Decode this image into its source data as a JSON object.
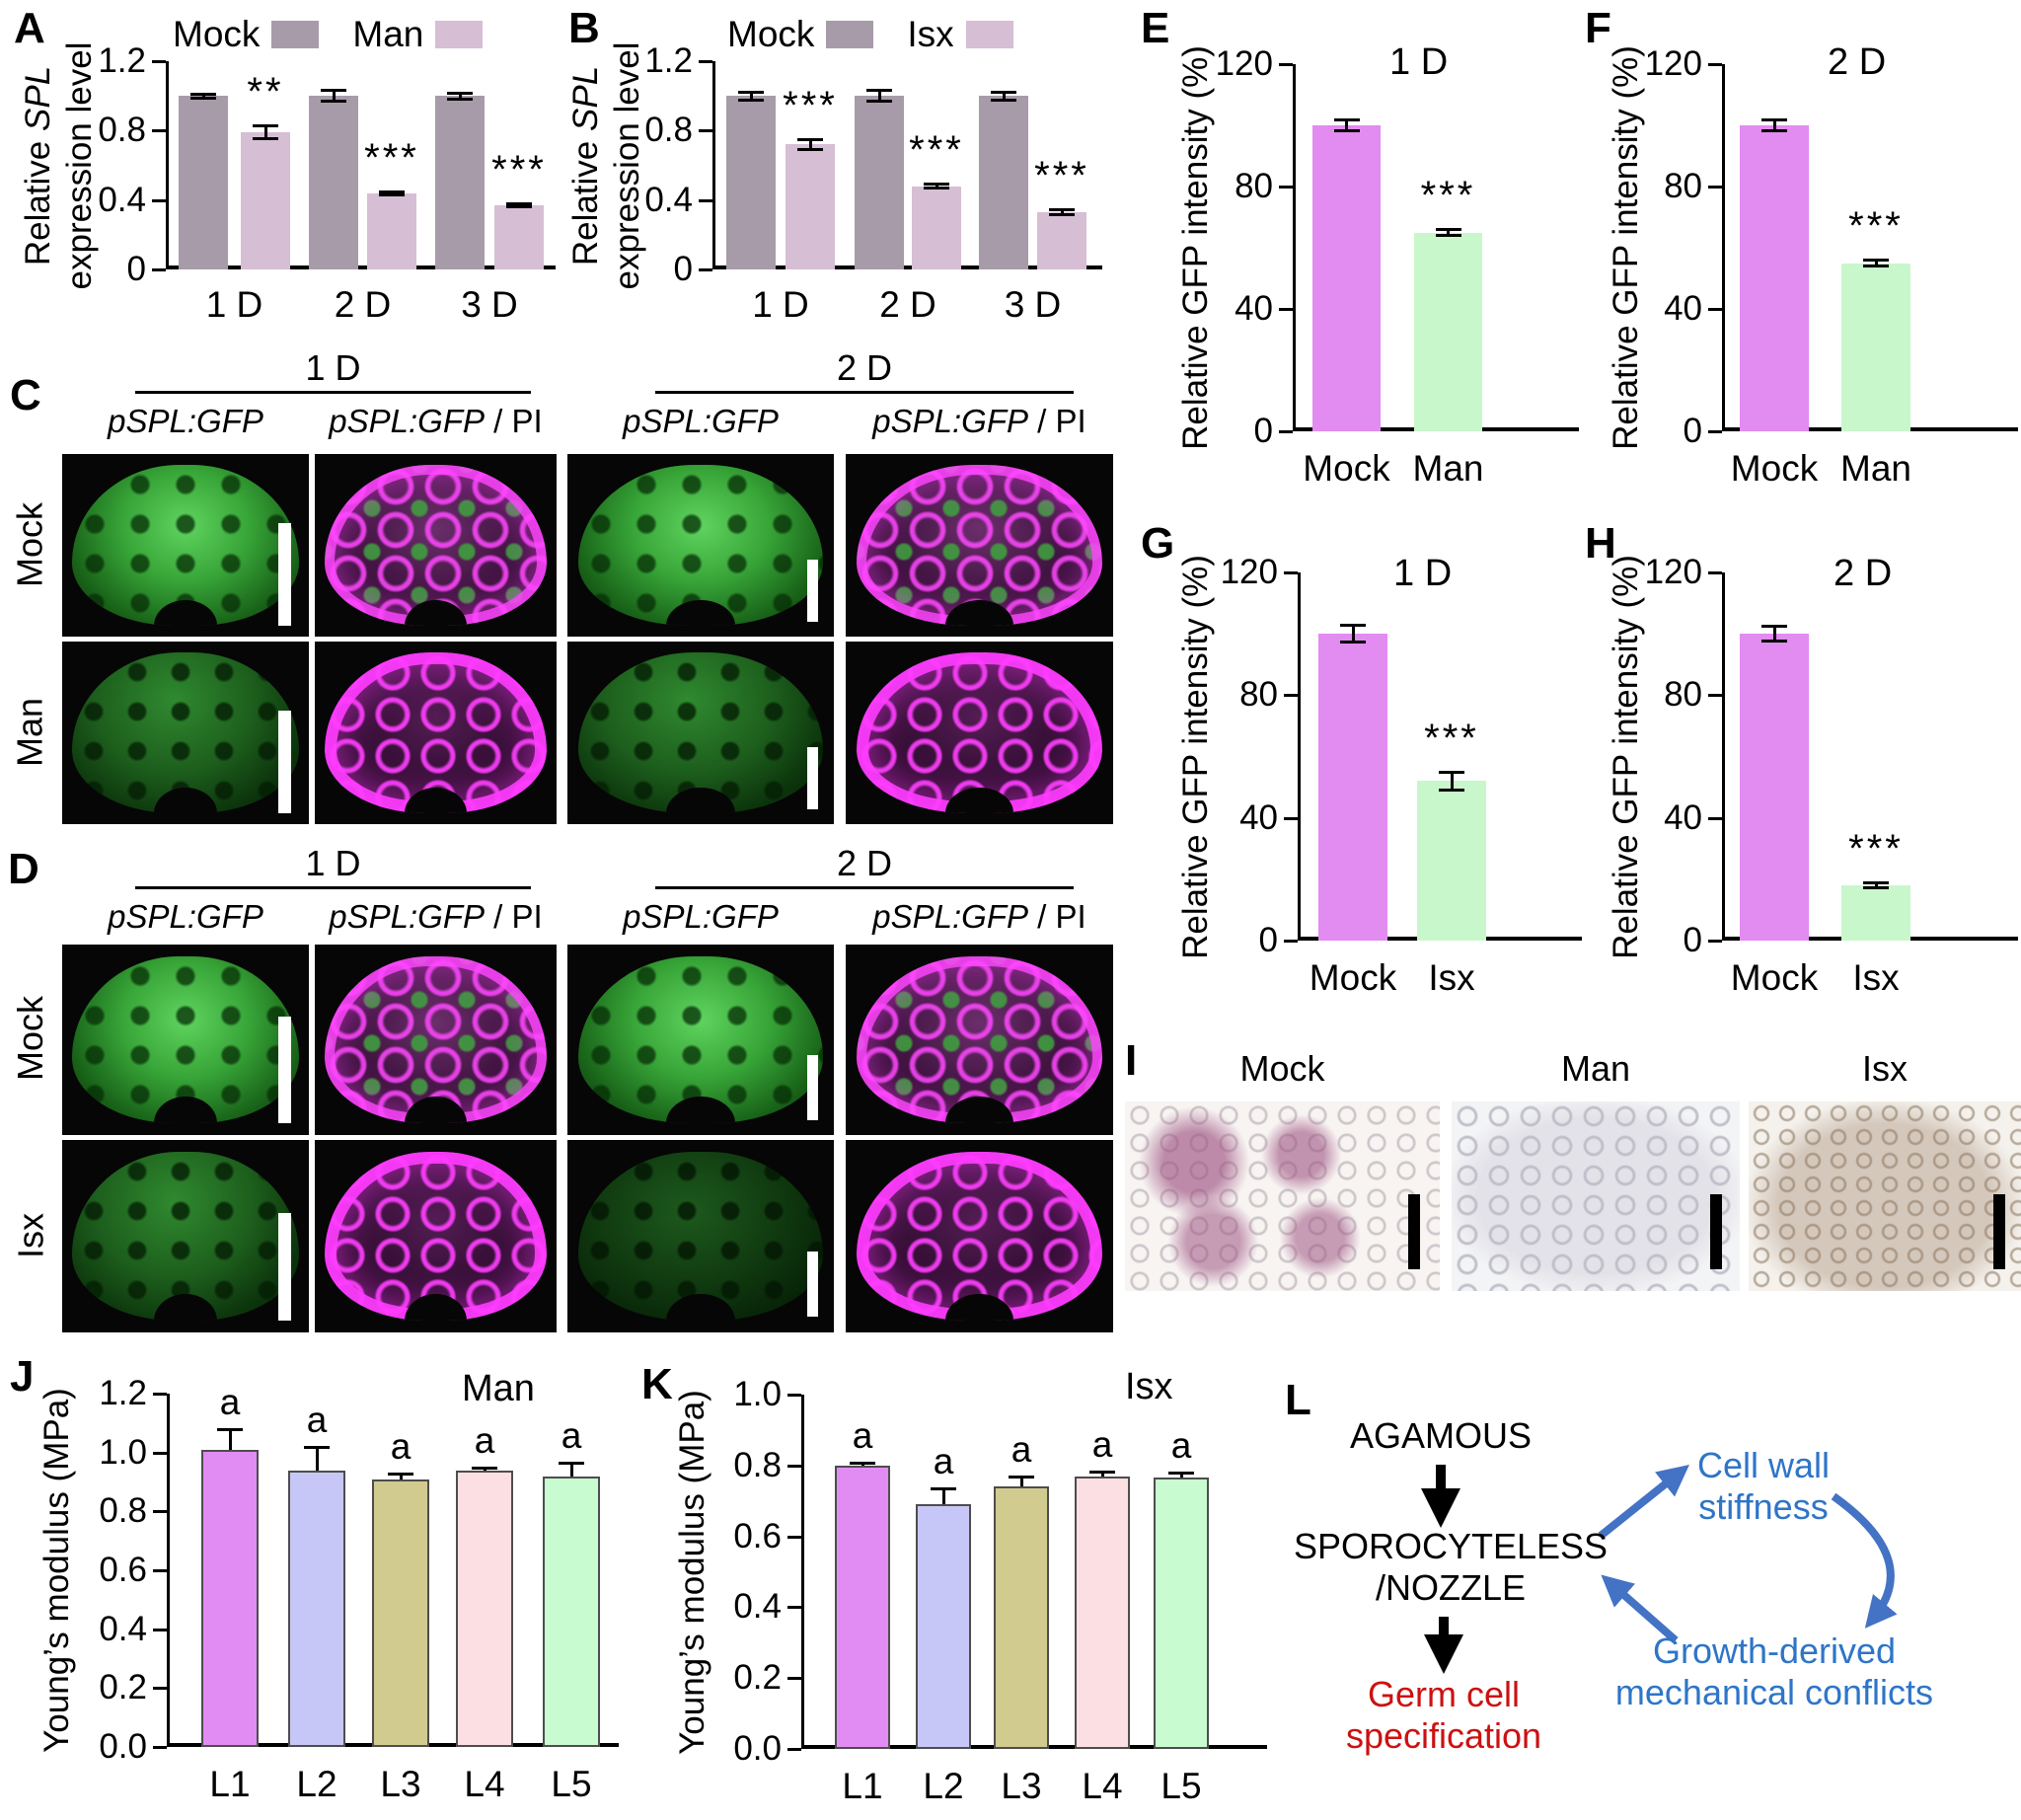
{
  "panels": {
    "A": {
      "label": "A"
    },
    "B": {
      "label": "B"
    },
    "C": {
      "label": "C"
    },
    "D": {
      "label": "D"
    },
    "E": {
      "label": "E"
    },
    "F": {
      "label": "F"
    },
    "G": {
      "label": "G"
    },
    "H": {
      "label": "H"
    },
    "I": {
      "label": "I"
    },
    "J": {
      "label": "J"
    },
    "K": {
      "label": "K"
    },
    "L": {
      "label": "L"
    }
  },
  "chart_data": [
    {
      "id": "A",
      "type": "bar",
      "grouped": true,
      "ylabel": "Relative SPL expression level",
      "ylabel_lines": [
        "Relative SPL",
        "expression level"
      ],
      "italic_words": [
        "SPL"
      ],
      "categories": [
        "1 D",
        "2 D",
        "3 D"
      ],
      "ylim": [
        0,
        1.2
      ],
      "yticks": [
        {
          "v": 0,
          "t": "0"
        },
        {
          "v": 0.4,
          "t": "0.4"
        },
        {
          "v": 0.8,
          "t": "0.8"
        },
        {
          "v": 1.2,
          "t": "1.2"
        }
      ],
      "error_style": "full",
      "legend": true,
      "legend_position": "top",
      "series": [
        {
          "name": "Mock",
          "color": "#a79ba9",
          "values": [
            1.0,
            1.0,
            1.0
          ],
          "errors": [
            0.015,
            0.035,
            0.02
          ],
          "sig": [
            null,
            null,
            null
          ]
        },
        {
          "name": "Man",
          "color": "#d6bed4",
          "values": [
            0.79,
            0.44,
            0.37
          ],
          "errors": [
            0.04,
            0.012,
            0.01
          ],
          "sig": [
            "**",
            "***",
            "***"
          ]
        }
      ]
    },
    {
      "id": "B",
      "type": "bar",
      "grouped": true,
      "ylabel": "Relative SPL expression level",
      "ylabel_lines": [
        "Relative SPL",
        "expression level"
      ],
      "italic_words": [
        "SPL"
      ],
      "categories": [
        "1 D",
        "2 D",
        "3 D"
      ],
      "ylim": [
        0,
        1.2
      ],
      "yticks": [
        {
          "v": 0,
          "t": "0"
        },
        {
          "v": 0.4,
          "t": "0.4"
        },
        {
          "v": 0.8,
          "t": "0.8"
        },
        {
          "v": 1.2,
          "t": "1.2"
        }
      ],
      "error_style": "full",
      "legend": true,
      "legend_position": "top",
      "series": [
        {
          "name": "Mock",
          "color": "#a79ba9",
          "values": [
            1.0,
            1.0,
            1.0
          ],
          "errors": [
            0.025,
            0.035,
            0.025
          ],
          "sig": [
            null,
            null,
            null
          ]
        },
        {
          "name": "Isx",
          "color": "#d6bed4",
          "values": [
            0.72,
            0.48,
            0.33
          ],
          "errors": [
            0.03,
            0.012,
            0.015
          ],
          "sig": [
            "***",
            "***",
            "***"
          ]
        }
      ]
    },
    {
      "id": "E",
      "type": "bar",
      "title": "1 D",
      "ylabel": "Relative GFP intensity (%)",
      "ylabel_lines": [
        "Relative GFP intensity (%)"
      ],
      "categories": [
        "Mock",
        "Man"
      ],
      "values": [
        100,
        65
      ],
      "errors": [
        2,
        1
      ],
      "sig": [
        null,
        "***"
      ],
      "colors": [
        "#e28bf0",
        "#c9f7cc"
      ],
      "ylim": [
        0,
        120
      ],
      "yticks": [
        {
          "v": 0,
          "t": "0"
        },
        {
          "v": 40,
          "t": "40"
        },
        {
          "v": 80,
          "t": "80"
        },
        {
          "v": 120,
          "t": "120"
        }
      ],
      "error_style": "full"
    },
    {
      "id": "F",
      "type": "bar",
      "title": "2 D",
      "ylabel": "Relative GFP intensity (%)",
      "ylabel_lines": [
        "Relative GFP intensity (%)"
      ],
      "categories": [
        "Mock",
        "Man"
      ],
      "values": [
        100,
        55
      ],
      "errors": [
        2,
        1
      ],
      "sig": [
        null,
        "***"
      ],
      "colors": [
        "#e28bf0",
        "#c9f7cc"
      ],
      "ylim": [
        0,
        120
      ],
      "yticks": [
        {
          "v": 0,
          "t": "0"
        },
        {
          "v": 40,
          "t": "40"
        },
        {
          "v": 80,
          "t": "80"
        },
        {
          "v": 120,
          "t": "120"
        }
      ],
      "error_style": "full"
    },
    {
      "id": "G",
      "type": "bar",
      "title": "1 D",
      "ylabel": "Relative GFP intensity (%)",
      "ylabel_lines": [
        "Relative GFP intensity (%)"
      ],
      "categories": [
        "Mock",
        "Isx"
      ],
      "values": [
        100,
        52
      ],
      "errors": [
        3,
        3
      ],
      "sig": [
        null,
        "***"
      ],
      "colors": [
        "#e28bf0",
        "#c9f7cc"
      ],
      "ylim": [
        0,
        120
      ],
      "yticks": [
        {
          "v": 0,
          "t": "0"
        },
        {
          "v": 40,
          "t": "40"
        },
        {
          "v": 80,
          "t": "80"
        },
        {
          "v": 120,
          "t": "120"
        }
      ],
      "error_style": "full"
    },
    {
      "id": "H",
      "type": "bar",
      "title": "2 D",
      "ylabel": "Relative GFP intensity (%)",
      "ylabel_lines": [
        "Relative GFP intensity (%)"
      ],
      "categories": [
        "Mock",
        "Isx"
      ],
      "values": [
        100,
        18
      ],
      "errors": [
        2.5,
        1
      ],
      "sig": [
        null,
        "***"
      ],
      "colors": [
        "#e28bf0",
        "#c9f7cc"
      ],
      "ylim": [
        0,
        120
      ],
      "yticks": [
        {
          "v": 0,
          "t": "0"
        },
        {
          "v": 40,
          "t": "40"
        },
        {
          "v": 80,
          "t": "80"
        },
        {
          "v": 120,
          "t": "120"
        }
      ],
      "error_style": "full"
    },
    {
      "id": "J",
      "type": "bar",
      "title": "Man",
      "ylabel": "Young’s modulus (MPa)",
      "ylabel_lines": [
        "Young’s modulus (MPa)"
      ],
      "categories": [
        "L1",
        "L2",
        "L3",
        "L4",
        "L5"
      ],
      "values": [
        1.01,
        0.94,
        0.91,
        0.94,
        0.92
      ],
      "errors": [
        0.07,
        0.08,
        0.02,
        0.008,
        0.045
      ],
      "letters": [
        "a",
        "a",
        "a",
        "a",
        "a"
      ],
      "colors": [
        "#e18cf2",
        "#c7c7f7",
        "#d2cb8f",
        "#fcdfe2",
        "#c8fbd0"
      ],
      "bar_border": "#4d4d4d",
      "ylim": [
        0,
        1.2
      ],
      "yticks": [
        {
          "v": 0,
          "t": "0.0"
        },
        {
          "v": 0.2,
          "t": "0.2"
        },
        {
          "v": 0.4,
          "t": "0.4"
        },
        {
          "v": 0.6,
          "t": "0.6"
        },
        {
          "v": 0.8,
          "t": "0.8"
        },
        {
          "v": 1.0,
          "t": "1.0"
        },
        {
          "v": 1.2,
          "t": "1.2"
        }
      ],
      "error_style": "upper"
    },
    {
      "id": "K",
      "type": "bar",
      "title": "Isx",
      "ylabel": "Young’s modulus (MPa)",
      "ylabel_lines": [
        "Young’s modulus (MPa)"
      ],
      "categories": [
        "L1",
        "L2",
        "L3",
        "L4",
        "L5"
      ],
      "values": [
        0.8,
        0.69,
        0.74,
        0.77,
        0.765
      ],
      "errors": [
        0.008,
        0.045,
        0.03,
        0.014,
        0.014
      ],
      "letters": [
        "a",
        "a",
        "a",
        "a",
        "a"
      ],
      "colors": [
        "#e18cf2",
        "#c7c7f7",
        "#d2cb8f",
        "#fcdfe2",
        "#c8fbd0"
      ],
      "bar_border": "#4d4d4d",
      "ylim": [
        0,
        1.0
      ],
      "yticks": [
        {
          "v": 0,
          "t": "0.0"
        },
        {
          "v": 0.2,
          "t": "0.2"
        },
        {
          "v": 0.4,
          "t": "0.4"
        },
        {
          "v": 0.6,
          "t": "0.6"
        },
        {
          "v": 0.8,
          "t": "0.8"
        },
        {
          "v": 1.0,
          "t": "1.0"
        }
      ],
      "error_style": "upper"
    }
  ],
  "panel_C": {
    "time_groups": [
      "1 D",
      "2 D"
    ],
    "col_labels": [
      {
        "i": "pSPL:GFP",
        "n": ""
      },
      {
        "i": "pSPL:GFP",
        "n": " / PI"
      },
      {
        "i": "pSPL:GFP",
        "n": ""
      },
      {
        "i": "pSPL:GFP",
        "n": " / PI"
      }
    ],
    "row_labels": [
      "Mock",
      "Man"
    ],
    "cells": [
      [
        "gfp",
        "pi",
        "gfp",
        "pi"
      ],
      [
        "gfpdim",
        "pimag",
        "gfpdim",
        "pimag"
      ]
    ]
  },
  "panel_D": {
    "time_groups": [
      "1 D",
      "2 D"
    ],
    "col_labels": [
      {
        "i": "pSPL:GFP",
        "n": ""
      },
      {
        "i": "pSPL:GFP",
        "n": " / PI"
      },
      {
        "i": "pSPL:GFP",
        "n": ""
      },
      {
        "i": "pSPL:GFP",
        "n": " / PI"
      }
    ],
    "row_labels": [
      "Mock",
      "Isx"
    ],
    "cells": [
      [
        "gfp",
        "pi",
        "gfp",
        "pi"
      ],
      [
        "gfpdim",
        "pimag",
        "gfpdim2",
        "pimag"
      ]
    ]
  },
  "panel_I": {
    "items": [
      {
        "label": "Mock",
        "variant": "stained"
      },
      {
        "label": "Man",
        "variant": "pale"
      },
      {
        "label": "Isx",
        "variant": "brown"
      }
    ]
  },
  "panel_L": {
    "agamous": "AGAMOUS",
    "spl": [
      "SPOROCYTELESS",
      "/NOZZLE"
    ],
    "germ": [
      "Germ cell",
      "specification"
    ],
    "cellwall": [
      "Cell wall",
      "stiffness"
    ],
    "growth": [
      "Growth-derived",
      "mechanical conflicts"
    ],
    "colors": {
      "text_black": "#000000",
      "text_red": "#cc1111",
      "text_blue": "#2e75c8",
      "arrow_blue": "#4472c4"
    }
  }
}
